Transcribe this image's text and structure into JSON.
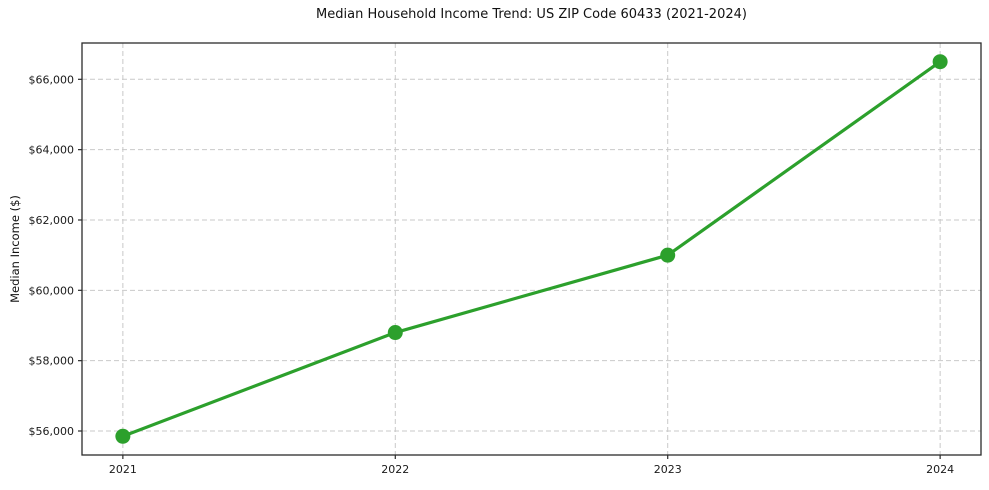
{
  "chart_data": {
    "type": "line",
    "title": "Median Household Income Trend: US ZIP Code 60433 (2021-2024)",
    "xlabel": "",
    "ylabel": "Median Income ($)",
    "x": [
      2021,
      2022,
      2023,
      2024
    ],
    "values": [
      55850,
      58800,
      61000,
      66500
    ],
    "x_ticks": [
      2021,
      2022,
      2023,
      2024
    ],
    "x_tick_labels": [
      "2021",
      "2022",
      "2023",
      "2024"
    ],
    "y_ticks": [
      56000,
      58000,
      60000,
      62000,
      64000,
      66000
    ],
    "y_tick_labels": [
      "$56,000",
      "$58,000",
      "$60,000",
      "$62,000",
      "$64,000",
      "$66,000"
    ],
    "xlim": [
      2020.85,
      2024.15
    ],
    "ylim": [
      55317.5,
      67032.5
    ],
    "grid": true,
    "grid_style": "dashed",
    "legend_position": "none",
    "colors": {
      "line": "#2ca02c",
      "marker": "#2ca02c",
      "grid": "#c9c9c9",
      "spine": "#2b2b2b",
      "background": "#ffffff",
      "text": "#111111"
    }
  }
}
